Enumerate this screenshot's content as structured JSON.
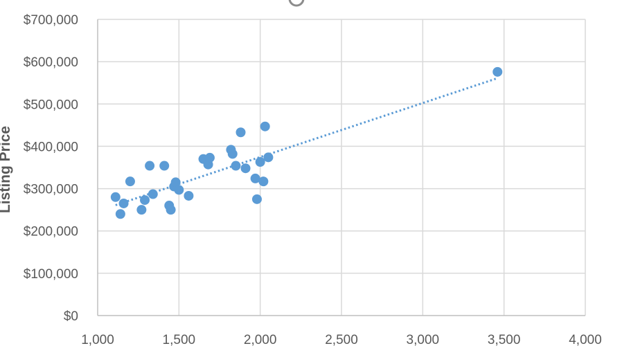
{
  "chart_data": {
    "type": "scatter",
    "title": "",
    "xlabel": "",
    "ylabel": "Listing Price",
    "xlim": [
      1000,
      4000
    ],
    "ylim": [
      0,
      700000
    ],
    "x_ticks": [
      "1,000",
      "1,500",
      "2,000",
      "2,500",
      "3,000",
      "3,500",
      "4,000"
    ],
    "y_ticks": [
      "$0",
      "$100,000",
      "$200,000",
      "$300,000",
      "$400,000",
      "$500,000",
      "$600,000",
      "$700,000"
    ],
    "grid": true,
    "trendline": {
      "type": "linear",
      "style": "dotted",
      "x_start": 1110,
      "x_end": 3460,
      "y_start": 261000,
      "y_end": 561000
    },
    "point_color": "#5B9BD5",
    "series": [
      {
        "points": [
          [
            1110,
            280000
          ],
          [
            1140,
            240000
          ],
          [
            1160,
            265000
          ],
          [
            1200,
            317000
          ],
          [
            1270,
            250000
          ],
          [
            1290,
            273000
          ],
          [
            1320,
            354000
          ],
          [
            1340,
            287000
          ],
          [
            1410,
            354000
          ],
          [
            1440,
            260000
          ],
          [
            1450,
            250000
          ],
          [
            1470,
            305000
          ],
          [
            1480,
            315000
          ],
          [
            1500,
            297000
          ],
          [
            1560,
            283000
          ],
          [
            1650,
            370000
          ],
          [
            1680,
            357000
          ],
          [
            1690,
            373000
          ],
          [
            1820,
            392000
          ],
          [
            1830,
            382000
          ],
          [
            1850,
            354000
          ],
          [
            1880,
            433000
          ],
          [
            1910,
            348000
          ],
          [
            1970,
            324000
          ],
          [
            1980,
            275000
          ],
          [
            2000,
            363000
          ],
          [
            2020,
            317000
          ],
          [
            2030,
            447000
          ],
          [
            2050,
            374000
          ],
          [
            3460,
            576000
          ]
        ]
      }
    ]
  }
}
